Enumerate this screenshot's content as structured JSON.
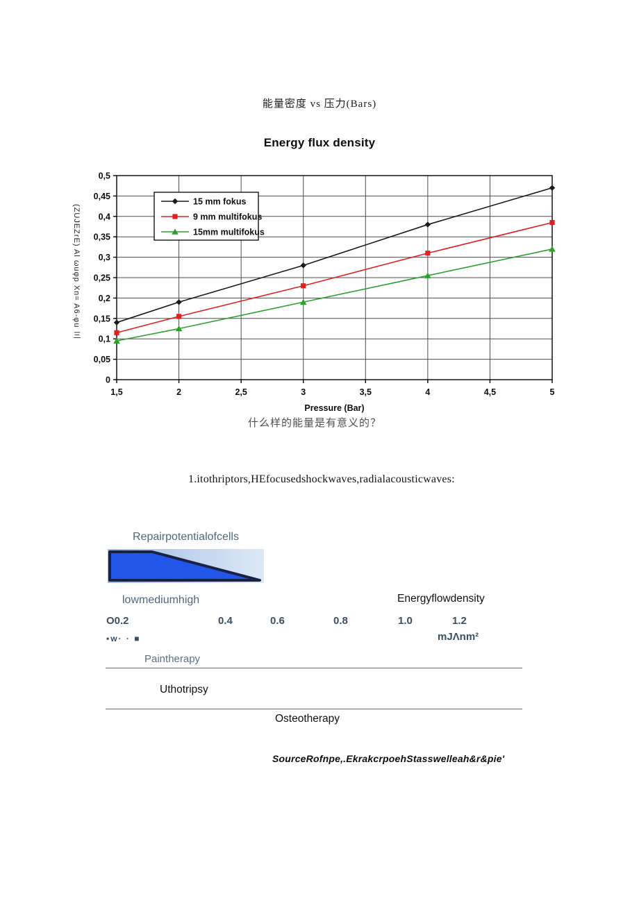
{
  "page": {
    "title_cn": "能量密度 vs 压力(Bars)",
    "question_cn": "什么样的能量是有意义的？",
    "intro_line": "1.itothriptors,HEfocusedshockwaves,radialacousticwaves:",
    "source_line": "SourceRofnpe,.EkrakcrpoehStasswelleah&r&pie'"
  },
  "chart_data": {
    "type": "line",
    "title": "Energy flux density",
    "xlabel": "Pressure (Bar)",
    "ylabel": "(ZUJEZrE) Al ωuφp Xn= A6-φu 三",
    "x": [
      1.5,
      2,
      3,
      4,
      5
    ],
    "series": [
      {
        "name": "15 mm fokus",
        "marker": "diamond",
        "color": "#1a1a1a",
        "values": [
          0.14,
          0.19,
          0.28,
          0.38,
          0.47
        ]
      },
      {
        "name": " 9 mm multifokus",
        "marker": "square",
        "color": "#e02121",
        "values": [
          0.115,
          0.155,
          0.23,
          0.31,
          0.385
        ]
      },
      {
        "name": "15mm multifokus",
        "marker": "triangle",
        "color": "#2ba02b",
        "values": [
          0.095,
          0.125,
          0.19,
          0.255,
          0.32
        ]
      }
    ],
    "xlim": [
      1.5,
      5
    ],
    "ylim": [
      0,
      0.5
    ],
    "x_ticks": [
      {
        "v": 1.5,
        "label": "1,5"
      },
      {
        "v": 2,
        "label": "2"
      },
      {
        "v": 2.5,
        "label": "2,5"
      },
      {
        "v": 3,
        "label": "3"
      },
      {
        "v": 3.5,
        "label": "3,5"
      },
      {
        "v": 4,
        "label": "4"
      },
      {
        "v": 4.5,
        "label": "4,5"
      },
      {
        "v": 5,
        "label": "5"
      }
    ],
    "y_ticks": [
      {
        "v": 0,
        "label": "0"
      },
      {
        "v": 0.05,
        "label": "0,05"
      },
      {
        "v": 0.1,
        "label": "0,1"
      },
      {
        "v": 0.15,
        "label": "0,15"
      },
      {
        "v": 0.2,
        "label": "0,2"
      },
      {
        "v": 0.25,
        "label": "0,25"
      },
      {
        "v": 0.3,
        "label": "0,3"
      },
      {
        "v": 0.35,
        "label": "0,35"
      },
      {
        "v": 0.4,
        "label": "0,4"
      },
      {
        "v": 0.45,
        "label": "0,45"
      },
      {
        "v": 0.5,
        "label": "0,5"
      }
    ],
    "grid": true,
    "legend_position": "upper-left-inside",
    "grid_color": "#4d4d4d",
    "axis_color": "#000000"
  },
  "diagram": {
    "repair_label": "Repairpotentialofcells",
    "intensity_label": "lowmediumhigh",
    "energy_flow_label": "Energyflowdensity",
    "scale_ticks": [
      "O0.2",
      "0.4",
      "0.6",
      "0.8",
      "1.0",
      "1.2"
    ],
    "glyph_row": "•w· · ■",
    "unit_label": "mJΛnm²",
    "pain_label": "Paintherapy",
    "litho_label": "Uthotripsy",
    "osteo_label": "Osteotherapy",
    "wedge": {
      "fill": "#2156e8",
      "border": "#1a2147",
      "bg_left": "#9fbce4",
      "bg_right": "#dce8f5"
    }
  }
}
